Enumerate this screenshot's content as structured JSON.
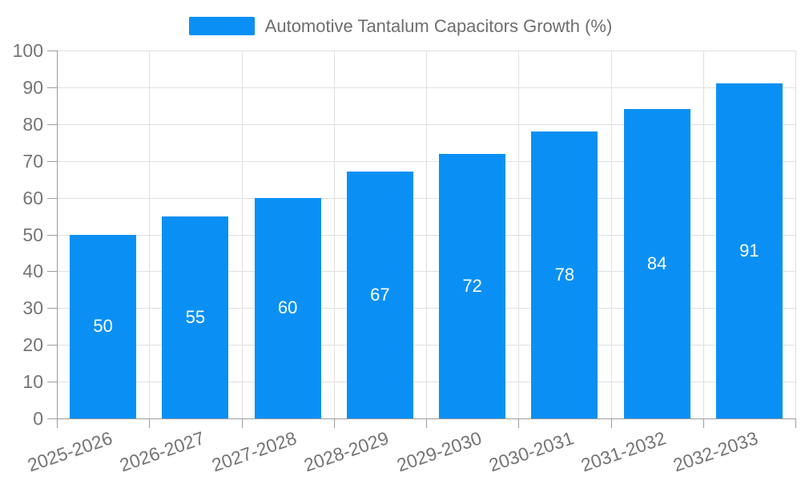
{
  "chart_data": {
    "type": "bar",
    "title": "Automotive Tantalum Capacitors Growth (%)",
    "categories": [
      "2025-2026",
      "2026-2027",
      "2027-2028",
      "2028-2029",
      "2029-2030",
      "2030-2031",
      "2031-2032",
      "2032-2033"
    ],
    "values": [
      50,
      55,
      60,
      67,
      72,
      78,
      84,
      91
    ],
    "xlabel": "",
    "ylabel": "",
    "ylim": [
      0,
      100
    ],
    "yticks": [
      0,
      10,
      20,
      30,
      40,
      50,
      60,
      70,
      80,
      90,
      100
    ],
    "grid": true,
    "legend_position": "top-center",
    "bar_label_position": "inside-center",
    "x_label_rotation_deg": -19,
    "colors": {
      "bar": "#0A90F5",
      "grid_line": "#E0E0E0",
      "axis_line": "#9E9E9E",
      "tick_label": "#757575",
      "bar_label": "#FFFFFF",
      "legend_text": "#6E6E6E",
      "background": "#FFFFFF"
    }
  }
}
